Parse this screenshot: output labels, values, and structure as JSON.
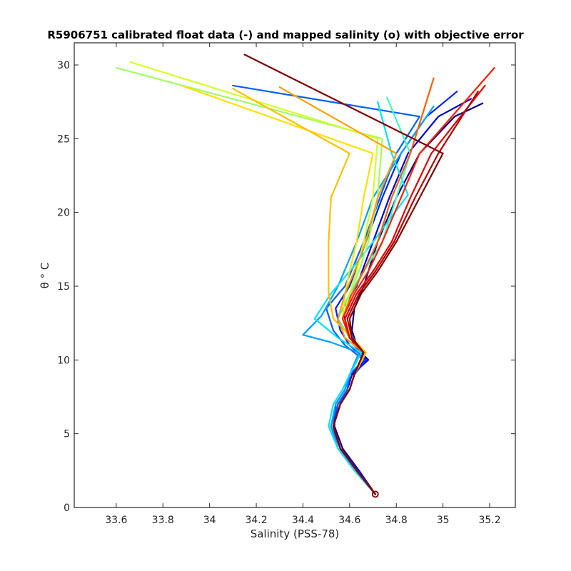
{
  "chart_data": {
    "type": "line",
    "title": "R5906751 calibrated float data (-) and mapped salinity (o) with objective error",
    "xlabel": "Salinity (PSS-78)",
    "ylabel": "θ ° C",
    "xlim": [
      33.42,
      35.31
    ],
    "ylim": [
      0,
      31.5
    ],
    "xticks": [
      33.6,
      33.8,
      34,
      34.2,
      34.4,
      34.6,
      34.8,
      35,
      35.2
    ],
    "xtick_labels": [
      "33.6",
      "33.8",
      "34",
      "34.2",
      "34.4",
      "34.6",
      "34.8",
      "35",
      "35.2"
    ],
    "yticks": [
      0,
      5,
      10,
      15,
      20,
      25,
      30
    ],
    "ytick_labels": [
      "0",
      "5",
      "10",
      "15",
      "20",
      "25",
      "30"
    ],
    "grid": false,
    "legend": "none",
    "colormap": "jet (profile order: blue → cyan → green → yellow → orange → red → dark red)",
    "series": [
      {
        "color": "#00008f",
        "x": [
          34.71,
          34.64,
          34.57,
          34.535,
          34.54,
          34.58,
          34.6,
          34.67,
          34.63,
          34.61,
          34.62,
          34.66,
          34.72,
          34.8,
          34.9,
          35.05,
          35.17
        ],
        "y": [
          0.9,
          2.5,
          4,
          5.5,
          7,
          8,
          9,
          10,
          11,
          12,
          13.5,
          15,
          18,
          21,
          24,
          26.5,
          27.4
        ]
      },
      {
        "color": "#0000d0",
        "x": [
          34.71,
          34.64,
          34.56,
          34.53,
          34.55,
          34.59,
          34.61,
          34.68,
          34.62,
          34.59,
          34.57,
          34.63,
          34.7,
          34.77,
          34.85,
          34.98,
          35.12
        ],
        "y": [
          0.9,
          2.5,
          4,
          5.5,
          7,
          8,
          9,
          10,
          11,
          12,
          13.5,
          15,
          18,
          21,
          24,
          26.5,
          27.7
        ]
      },
      {
        "color": "#0020ff",
        "x": [
          34.71,
          34.63,
          34.56,
          34.53,
          34.55,
          34.6,
          34.62,
          34.67,
          34.6,
          34.56,
          34.54,
          34.6,
          34.67,
          34.74,
          34.82,
          34.93,
          35.06
        ],
        "y": [
          0.9,
          2.5,
          4,
          5.5,
          7,
          8,
          9,
          10,
          11,
          12,
          13.5,
          15,
          18,
          21,
          24,
          26.5,
          28.2
        ]
      },
      {
        "color": "#0060ff",
        "x": [
          34.71,
          34.63,
          34.56,
          34.52,
          34.55,
          34.59,
          34.6,
          34.66,
          34.58,
          34.53,
          34.5,
          34.58,
          34.66,
          34.73,
          34.8,
          34.9,
          34.1
        ],
        "y": [
          0.9,
          2.5,
          4,
          5.5,
          7,
          8,
          9,
          10,
          11,
          12,
          13.5,
          15,
          18,
          21,
          24,
          26.5,
          28.6
        ]
      },
      {
        "color": "#00a0ff",
        "x": [
          34.71,
          34.63,
          34.55,
          34.52,
          34.54,
          34.58,
          34.6,
          34.64,
          34.52,
          34.4,
          34.48,
          34.55,
          34.63,
          34.7,
          34.82,
          34.96
        ],
        "y": [
          0.9,
          2.5,
          4,
          5.5,
          7,
          8,
          9,
          10.5,
          11.2,
          11.7,
          13,
          15,
          18,
          21,
          24,
          27.2
        ]
      },
      {
        "color": "#00e0ff",
        "x": [
          34.71,
          34.62,
          34.55,
          34.51,
          34.53,
          34.57,
          34.6,
          34.65,
          34.55,
          34.45,
          34.52,
          34.6,
          34.7,
          34.85,
          34.78,
          34.72
        ],
        "y": [
          0.9,
          2.5,
          4,
          5.5,
          7,
          8,
          9,
          10.5,
          11.5,
          12.8,
          14.5,
          16,
          18,
          21.2,
          24,
          27.5
        ]
      },
      {
        "color": "#40ffbf",
        "x": [
          34.71,
          34.63,
          34.56,
          34.53,
          34.56,
          34.6,
          34.62,
          34.66,
          34.6,
          34.55,
          34.6,
          34.66,
          34.74,
          34.8,
          34.86,
          34.76
        ],
        "y": [
          0.9,
          2.5,
          4,
          5.5,
          7,
          8,
          9,
          10.5,
          11.5,
          12.8,
          14.5,
          16,
          18,
          21,
          24,
          27.8
        ]
      },
      {
        "color": "#a0ff60",
        "x": [
          34.71,
          34.63,
          34.56,
          34.53,
          34.56,
          34.6,
          34.62,
          34.67,
          34.61,
          34.57,
          34.6,
          34.64,
          34.68,
          34.72,
          34.74,
          33.6
        ],
        "y": [
          0.9,
          2.5,
          4,
          5.5,
          7,
          8,
          9,
          10.5,
          11.5,
          12.8,
          14.5,
          16,
          18,
          21,
          25,
          29.8
        ]
      },
      {
        "color": "#d4ff2a",
        "x": [
          34.71,
          34.63,
          34.56,
          34.53,
          34.56,
          34.6,
          34.62,
          34.67,
          34.61,
          34.57,
          34.6,
          34.63,
          34.66,
          34.7,
          34.72,
          33.66
        ],
        "y": [
          0.9,
          2.5,
          4,
          5.5,
          7,
          8,
          9,
          10.5,
          11.5,
          12.8,
          14.5,
          16,
          18,
          21,
          25,
          30.2
        ]
      },
      {
        "color": "#ffe000",
        "x": [
          34.71,
          34.63,
          34.56,
          34.53,
          34.56,
          34.6,
          34.62,
          34.67,
          34.61,
          34.57,
          34.58,
          34.6,
          34.63,
          34.66,
          34.7,
          33.88
        ],
        "y": [
          0.9,
          2.5,
          4,
          5.5,
          7,
          8,
          9,
          10.5,
          11.5,
          12.8,
          14.5,
          16,
          18,
          21,
          24,
          28.6
        ]
      },
      {
        "color": "#ffc000",
        "x": [
          34.71,
          34.63,
          34.56,
          34.53,
          34.56,
          34.6,
          34.62,
          34.67,
          34.61,
          34.53,
          34.51,
          34.51,
          34.51,
          34.52,
          34.6,
          34.1
        ],
        "y": [
          0.9,
          2.5,
          4,
          5.5,
          7,
          8,
          9,
          10.5,
          11.5,
          12.8,
          14.5,
          16,
          18,
          21,
          24,
          28.4
        ]
      },
      {
        "color": "#ffa000",
        "x": [
          34.71,
          34.63,
          34.56,
          34.53,
          34.56,
          34.6,
          34.62,
          34.66,
          34.58,
          34.55,
          34.58,
          34.62,
          34.67,
          34.72,
          34.8,
          34.3
        ],
        "y": [
          0.9,
          2.5,
          4,
          5.5,
          7,
          8,
          9,
          10.5,
          11.5,
          12.8,
          14.5,
          16,
          18,
          21,
          24,
          28.5
        ]
      },
      {
        "color": "#ff6000",
        "x": [
          34.71,
          34.63,
          34.56,
          34.53,
          34.56,
          34.6,
          34.62,
          34.66,
          34.6,
          34.57,
          34.61,
          34.66,
          34.72,
          34.78,
          34.86,
          34.96
        ],
        "y": [
          0.9,
          2.5,
          4,
          5.5,
          7,
          8,
          9,
          10.5,
          11.5,
          12.8,
          14.5,
          16,
          18,
          21,
          24,
          29.1
        ]
      },
      {
        "color": "#ff2000",
        "x": [
          34.71,
          34.63,
          34.56,
          34.53,
          34.56,
          34.6,
          34.62,
          34.66,
          34.6,
          34.57,
          34.62,
          34.68,
          34.74,
          34.82,
          34.9,
          35.22
        ],
        "y": [
          0.9,
          2.5,
          4,
          5.5,
          7,
          8,
          9,
          10.5,
          11.5,
          12.8,
          14.5,
          16,
          18,
          21,
          24,
          29.8
        ]
      },
      {
        "color": "#e00000",
        "x": [
          34.71,
          34.63,
          34.56,
          34.53,
          34.56,
          34.6,
          34.62,
          34.66,
          34.6,
          34.58,
          34.63,
          34.7,
          34.78,
          34.86,
          34.95,
          35.18
        ],
        "y": [
          0.9,
          2.5,
          4,
          5.5,
          7,
          8,
          9,
          10.5,
          11.5,
          12.8,
          14.5,
          16,
          18,
          21,
          24,
          28.6
        ]
      },
      {
        "color": "#b00000",
        "x": [
          34.71,
          34.63,
          34.56,
          34.53,
          34.56,
          34.6,
          34.62,
          34.66,
          34.61,
          34.59,
          34.64,
          34.71,
          34.79,
          34.88,
          34.98,
          35.15
        ],
        "y": [
          0.9,
          2.5,
          4,
          5.5,
          7,
          8,
          9,
          10.5,
          11.5,
          12.8,
          14.5,
          16,
          18,
          21,
          24,
          28.2
        ]
      },
      {
        "color": "#800000",
        "x": [
          34.71,
          34.63,
          34.56,
          34.53,
          34.56,
          34.6,
          34.62,
          34.66,
          34.61,
          34.6,
          34.65,
          34.72,
          34.8,
          34.9,
          35.0,
          34.15
        ],
        "y": [
          0.9,
          2.5,
          4,
          5.5,
          7,
          8,
          9,
          10.5,
          11.5,
          12.8,
          14.5,
          16,
          18,
          21,
          24,
          30.7
        ]
      }
    ],
    "mapped_salinity_point": {
      "x": 34.71,
      "y": 0.9,
      "color": "#800000"
    }
  }
}
